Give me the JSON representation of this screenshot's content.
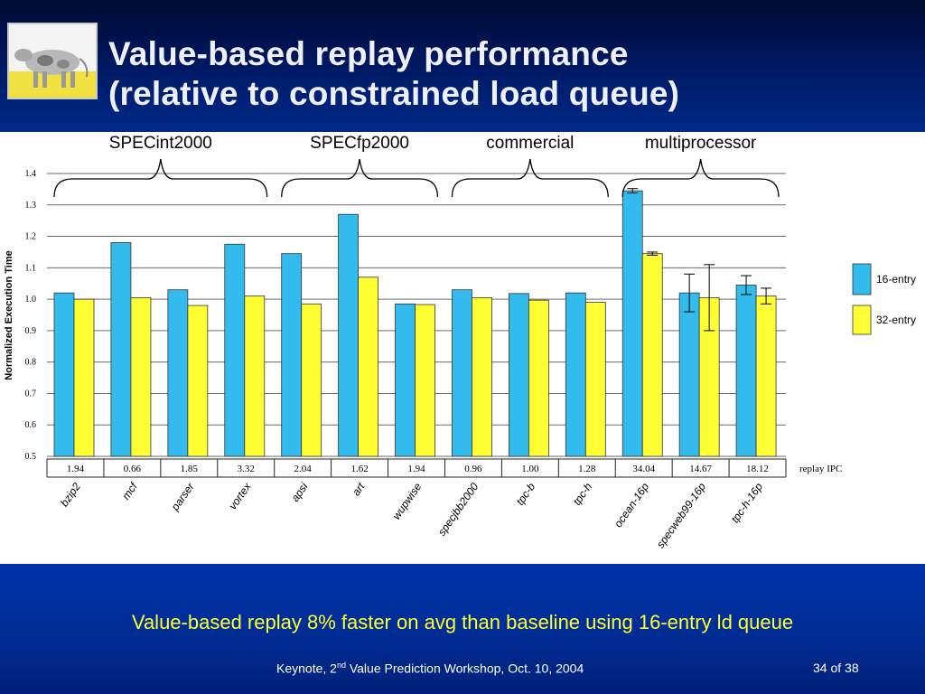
{
  "slide": {
    "title_line1": "Value-based replay performance",
    "title_line2": "(relative to constrained load queue)",
    "takeaway": "Value-based replay 8% faster on avg than baseline using 16-entry ld queue",
    "footer_pre": "Keynote, 2",
    "footer_sup": "nd",
    "footer_post": " Value Prediction Workshop, Oct. 10, 2004",
    "page": "34 of 38"
  },
  "colors": {
    "series_16": "#33bbee",
    "series_32": "#ffff33",
    "header_bg": "#001a66",
    "footer_bg": "#002d96",
    "takeaway_text": "#ffff33"
  },
  "chart_data": {
    "type": "bar",
    "ylabel": "Normalized Execution Time",
    "ylim": [
      0.5,
      1.4
    ],
    "yticks": [
      "0.5",
      "0.6",
      "0.7",
      "0.8",
      "0.9",
      "1.0",
      "1.1",
      "1.2",
      "1.3",
      "1.4"
    ],
    "grid": true,
    "legend_position": "right",
    "categories": [
      "bzip2",
      "mcf",
      "parser",
      "vortex",
      "apsi",
      "art",
      "wupwise",
      "specjbb2000",
      "tpc-b",
      "tpc-h",
      "ocean-16p",
      "specweb99-16p",
      "tpc-h-16p"
    ],
    "groups": [
      {
        "label": "SPECint2000",
        "from": 0,
        "to": 3
      },
      {
        "label": "SPECfp2000",
        "from": 4,
        "to": 6
      },
      {
        "label": "commercial",
        "from": 7,
        "to": 9
      },
      {
        "label": "multiprocessor",
        "from": 10,
        "to": 12
      }
    ],
    "replay_ipc_label": "replay IPC",
    "replay_ipc": [
      "1.94",
      "0.66",
      "1.85",
      "3.32",
      "2.04",
      "1.62",
      "1.94",
      "0.96",
      "1.00",
      "1.28",
      "34.04",
      "14.67",
      "18.12"
    ],
    "series": [
      {
        "name": "16-entry",
        "values": [
          1.02,
          1.18,
          1.03,
          1.175,
          1.145,
          1.27,
          0.985,
          1.03,
          1.018,
          1.02,
          1.345,
          1.02,
          1.045
        ],
        "error": [
          null,
          null,
          null,
          null,
          null,
          null,
          null,
          null,
          null,
          null,
          0.007,
          0.06,
          0.03
        ]
      },
      {
        "name": "32-entry",
        "values": [
          1.0,
          1.005,
          0.98,
          1.01,
          0.985,
          1.07,
          0.983,
          1.005,
          0.997,
          0.99,
          1.145,
          1.005,
          1.01
        ],
        "error": [
          null,
          null,
          null,
          null,
          null,
          null,
          null,
          null,
          null,
          null,
          0.005,
          0.105,
          0.025
        ]
      }
    ]
  }
}
